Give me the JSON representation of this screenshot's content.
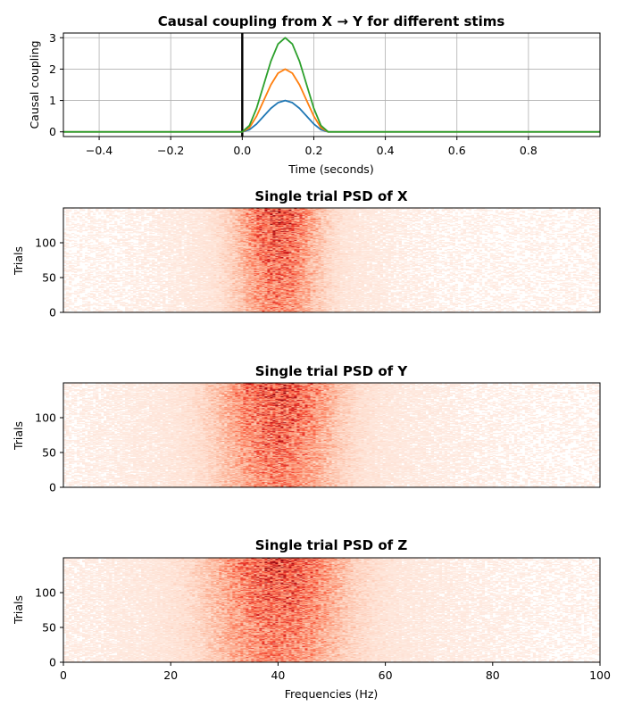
{
  "chart_data": [
    {
      "type": "line",
      "title": "Causal coupling from X → Y for different stims",
      "xlabel": "Time (seconds)",
      "ylabel": "Causal coupling",
      "xlim": [
        -0.5,
        1.0
      ],
      "ylim": [
        -0.15,
        3.15
      ],
      "xticks": [
        -0.4,
        -0.2,
        0.0,
        0.2,
        0.4,
        0.6,
        0.8
      ],
      "xtick_labels": [
        "−0.4",
        "−0.2",
        "0.0",
        "0.2",
        "0.4",
        "0.6",
        "0.8"
      ],
      "yticks": [
        0,
        1,
        2,
        3
      ],
      "ytick_labels": [
        "0",
        "1",
        "2",
        "3"
      ],
      "grid": true,
      "vline_x": 0.0,
      "series": [
        {
          "color": "#1f77b4",
          "x": [
            -0.5,
            0.0,
            0.02,
            0.04,
            0.06,
            0.08,
            0.1,
            0.12,
            0.14,
            0.16,
            0.18,
            0.2,
            0.22,
            0.24,
            0.25,
            1.0
          ],
          "y": [
            0,
            0,
            0.07,
            0.25,
            0.5,
            0.75,
            0.93,
            1.0,
            0.93,
            0.75,
            0.5,
            0.25,
            0.07,
            0.0,
            0,
            0
          ]
        },
        {
          "color": "#ff7f0e",
          "x": [
            -0.5,
            0.0,
            0.02,
            0.04,
            0.06,
            0.08,
            0.1,
            0.12,
            0.14,
            0.16,
            0.18,
            0.2,
            0.22,
            0.24,
            0.25,
            1.0
          ],
          "y": [
            0,
            0,
            0.13,
            0.5,
            1.0,
            1.5,
            1.87,
            2.0,
            1.87,
            1.5,
            1.0,
            0.5,
            0.13,
            0.0,
            0,
            0
          ]
        },
        {
          "color": "#2ca02c",
          "x": [
            -0.5,
            0.0,
            0.02,
            0.04,
            0.06,
            0.08,
            0.1,
            0.12,
            0.14,
            0.16,
            0.18,
            0.2,
            0.22,
            0.24,
            0.25,
            1.0
          ],
          "y": [
            0,
            0,
            0.2,
            0.75,
            1.5,
            2.25,
            2.8,
            3.0,
            2.8,
            2.25,
            1.5,
            0.75,
            0.2,
            0.0,
            0,
            0
          ]
        }
      ]
    },
    {
      "type": "heatmap",
      "title": "Single trial PSD of X",
      "ylabel": "Trials",
      "xlim": [
        0,
        100
      ],
      "ylim": [
        0,
        150
      ],
      "yticks": [
        0,
        50,
        100
      ],
      "ytick_labels": [
        "0",
        "50",
        "100"
      ],
      "colormap": "Reds",
      "band_center_hz": 40,
      "band_halfwidth_hz": 5
    },
    {
      "type": "heatmap",
      "title": "Single trial PSD of Y",
      "ylabel": "Trials",
      "xlim": [
        0,
        100
      ],
      "ylim": [
        0,
        150
      ],
      "yticks": [
        0,
        50,
        100
      ],
      "ytick_labels": [
        "0",
        "50",
        "100"
      ],
      "colormap": "Reds",
      "band_center_hz": 40,
      "band_halfwidth_hz": 7
    },
    {
      "type": "heatmap",
      "title": "Single trial PSD of Z",
      "xlabel": "Frequencies (Hz)",
      "ylabel": "Trials",
      "xlim": [
        0,
        100
      ],
      "ylim": [
        0,
        150
      ],
      "xticks": [
        0,
        20,
        40,
        60,
        80,
        100
      ],
      "xtick_labels": [
        "0",
        "20",
        "40",
        "60",
        "80",
        "100"
      ],
      "yticks": [
        0,
        50,
        100
      ],
      "ytick_labels": [
        "0",
        "50",
        "100"
      ],
      "colormap": "Reds",
      "band_center_hz": 40,
      "band_halfwidth_hz": 8
    }
  ]
}
